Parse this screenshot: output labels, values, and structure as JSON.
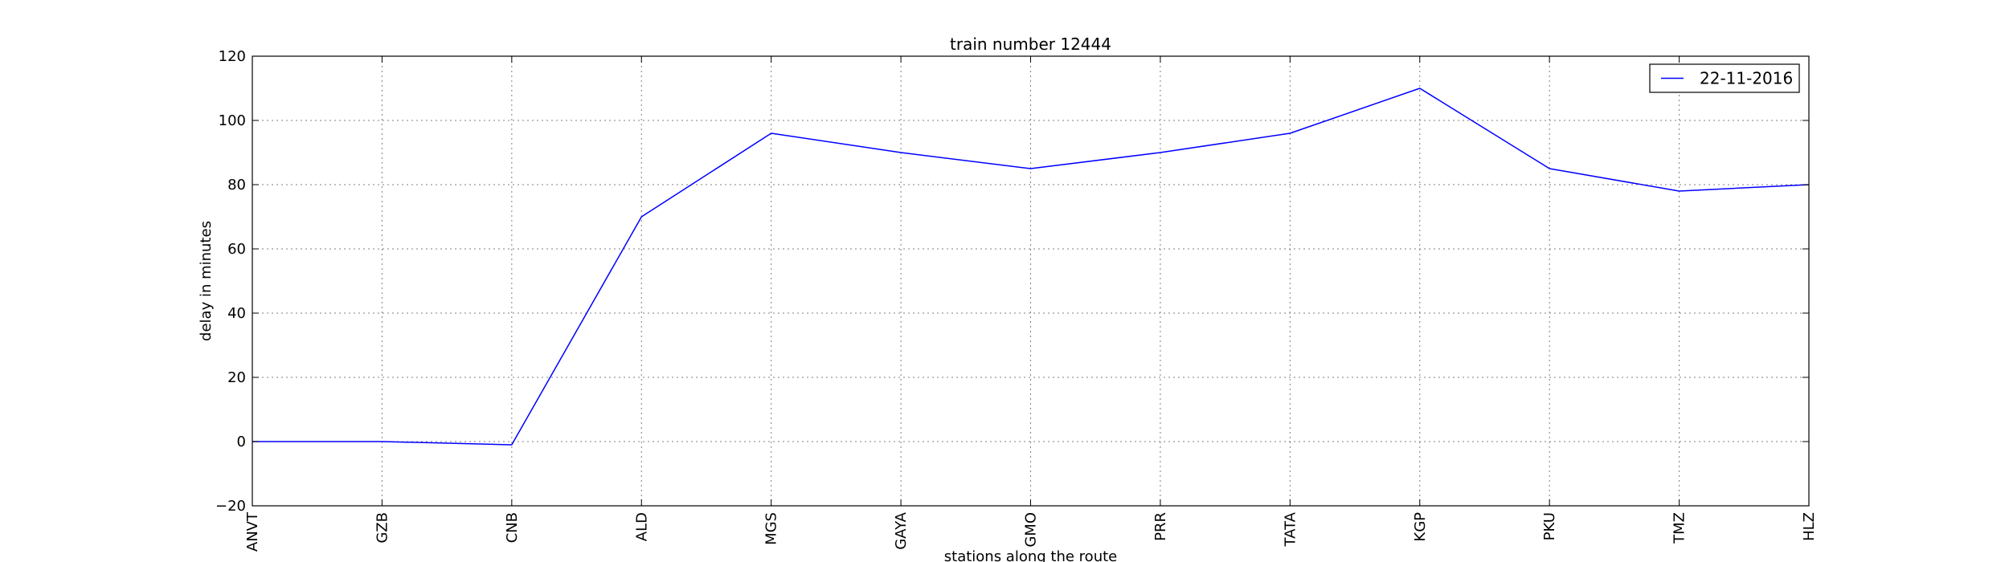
{
  "chart_data": {
    "type": "line",
    "title": "train number 12444",
    "xlabel": "stations along the route",
    "ylabel": "delay in minutes",
    "categories": [
      "ANVT",
      "GZB",
      "CNB",
      "ALD",
      "MGS",
      "GAYA",
      "GMO",
      "PRR",
      "TATA",
      "KGP",
      "PKU",
      "TMZ",
      "HLZ"
    ],
    "series": [
      {
        "name": "22-11-2016",
        "color": "#0000ff",
        "values": [
          0,
          0,
          -1,
          70,
          96,
          90,
          85,
          90,
          96,
          110,
          85,
          78,
          80
        ]
      }
    ],
    "ylim": [
      -20,
      120
    ],
    "yticks": [
      -20,
      0,
      20,
      40,
      60,
      80,
      100,
      120
    ],
    "grid": true,
    "legend_position": "top-right"
  }
}
